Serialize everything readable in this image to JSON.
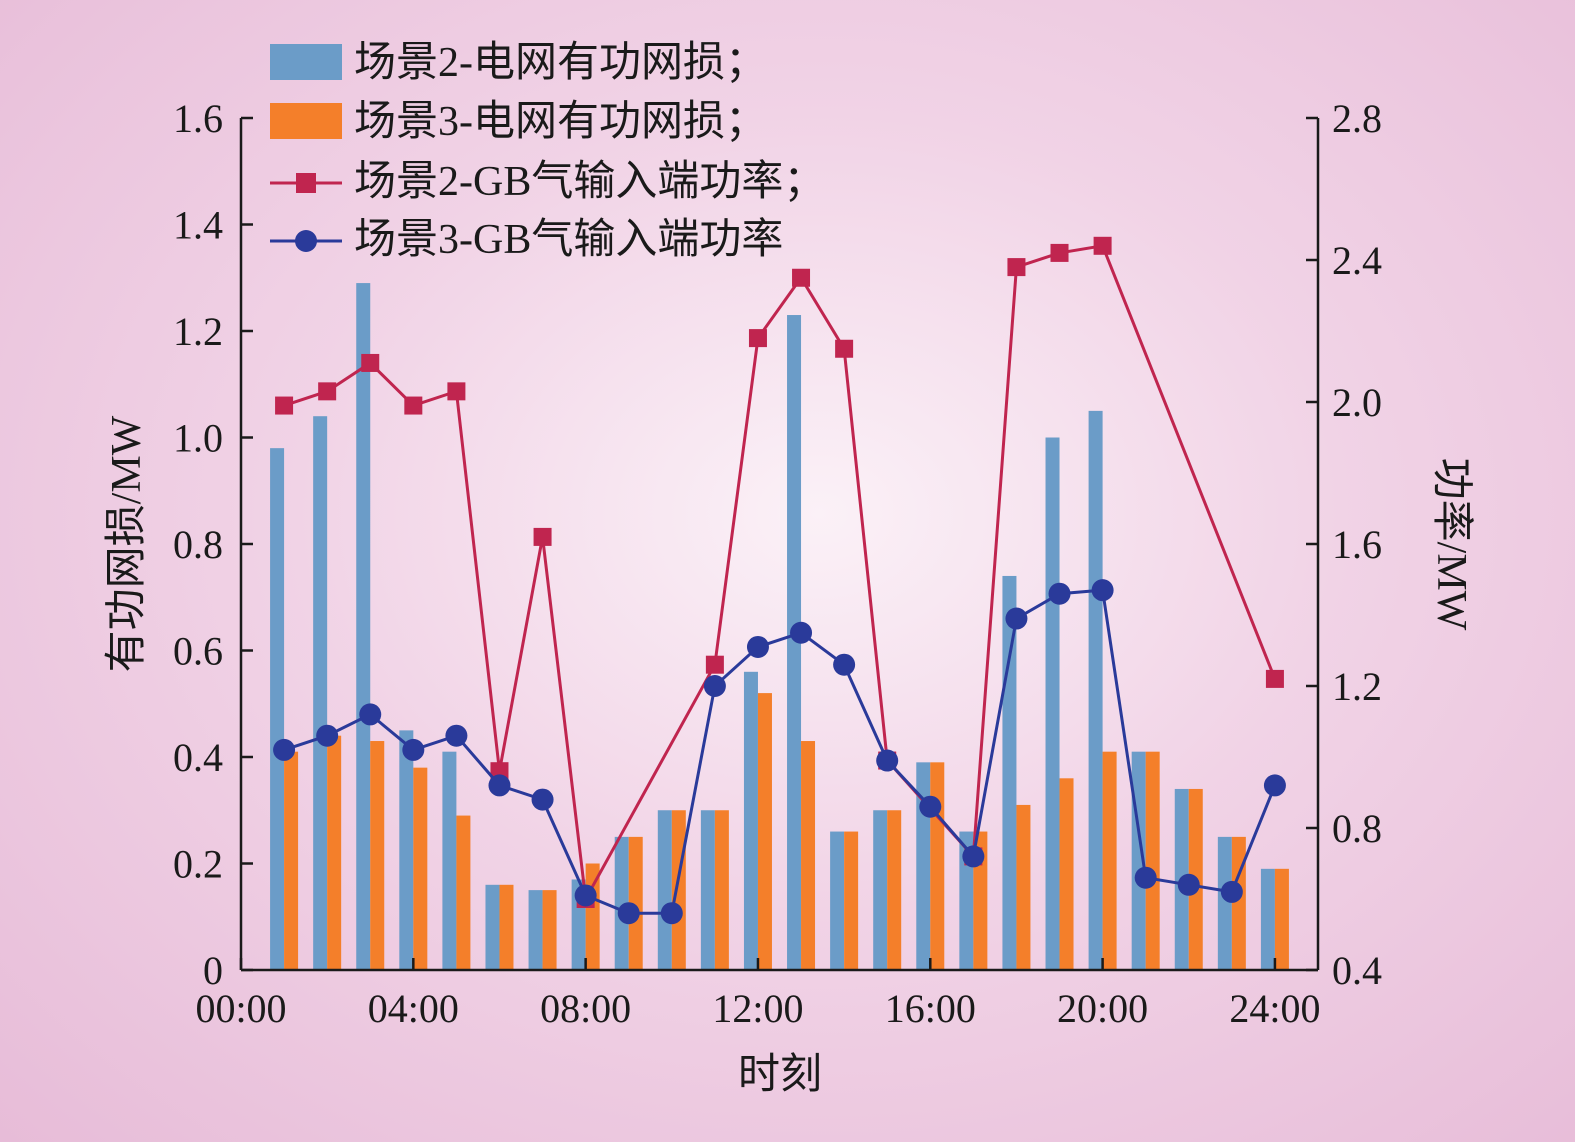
{
  "chart_data": {
    "type": "bar+line",
    "title": "",
    "xlabel": "时刻",
    "ylabel_left": "有功网损/MW",
    "ylabel_right": "功率/MW",
    "x_tick_labels": [
      "00:00",
      "04:00",
      "08:00",
      "12:00",
      "16:00",
      "20:00",
      "24:00"
    ],
    "x_hours": [
      1,
      2,
      3,
      4,
      5,
      6,
      7,
      8,
      9,
      10,
      11,
      12,
      13,
      14,
      15,
      16,
      17,
      18,
      19,
      20,
      21,
      22,
      23,
      24
    ],
    "xlim": [
      0,
      25
    ],
    "left_ylim": [
      0,
      1.6
    ],
    "left_ticks": [
      0,
      0.2,
      0.4,
      0.6,
      0.8,
      1.0,
      1.2,
      1.4,
      1.6
    ],
    "left_tick_labels": [
      "0",
      "0.2",
      "0.4",
      "0.6",
      "0.8",
      "1.0",
      "1.2",
      "1.4",
      "1.6"
    ],
    "right_ylim": [
      0.4,
      2.8
    ],
    "right_ticks": [
      0.4,
      0.8,
      1.2,
      1.6,
      2.0,
      2.4,
      2.8
    ],
    "right_tick_labels": [
      "0.4",
      "0.8",
      "1.2",
      "1.6",
      "2.0",
      "2.4",
      "2.8"
    ],
    "grid": false,
    "legend_position": "top-left",
    "bar_series": [
      {
        "name": "场景2-电网有功网损；",
        "color": "#6b9cc8",
        "axis": "left",
        "values": [
          0.98,
          1.04,
          1.29,
          0.45,
          0.41,
          0.16,
          0.15,
          0.17,
          0.25,
          0.3,
          0.3,
          0.56,
          1.23,
          0.26,
          0.3,
          0.39,
          0.26,
          0.74,
          1.0,
          1.05,
          0.41,
          0.34,
          0.25,
          0.19
        ]
      },
      {
        "name": "场景3-电网有功网损；",
        "color": "#f47f2a",
        "axis": "left",
        "values": [
          0.41,
          0.44,
          0.43,
          0.38,
          0.29,
          0.16,
          0.15,
          0.2,
          0.25,
          0.3,
          0.3,
          0.52,
          0.43,
          0.26,
          0.3,
          0.39,
          0.26,
          0.31,
          0.36,
          0.41,
          0.41,
          0.34,
          0.25,
          0.19
        ]
      }
    ],
    "line_series": [
      {
        "name": "场景2-GB气输入端功率；",
        "color": "#c0254f",
        "marker": "square",
        "axis": "right",
        "x": [
          1,
          2,
          3,
          4,
          5,
          6,
          7,
          8,
          11,
          12,
          13,
          14,
          15,
          17,
          18,
          19,
          20,
          24
        ],
        "values": [
          1.99,
          2.03,
          2.11,
          1.99,
          2.03,
          0.96,
          1.62,
          0.6,
          1.26,
          2.18,
          2.35,
          2.15,
          0.99,
          0.72,
          2.38,
          2.42,
          2.44,
          1.22
        ]
      },
      {
        "name": "场景3-GB气输入端功率",
        "color": "#2a3a9a",
        "marker": "circle",
        "axis": "right",
        "x": [
          1,
          2,
          3,
          4,
          5,
          6,
          7,
          8,
          9,
          10,
          11,
          12,
          13,
          14,
          15,
          16,
          17,
          18,
          19,
          20,
          21,
          22,
          23,
          24
        ],
        "values": [
          1.02,
          1.06,
          1.12,
          1.02,
          1.06,
          0.92,
          0.88,
          0.61,
          0.56,
          0.56,
          1.2,
          1.31,
          1.35,
          1.26,
          0.99,
          0.86,
          0.72,
          1.39,
          1.46,
          1.47,
          0.66,
          0.64,
          0.62,
          0.92
        ]
      }
    ]
  }
}
